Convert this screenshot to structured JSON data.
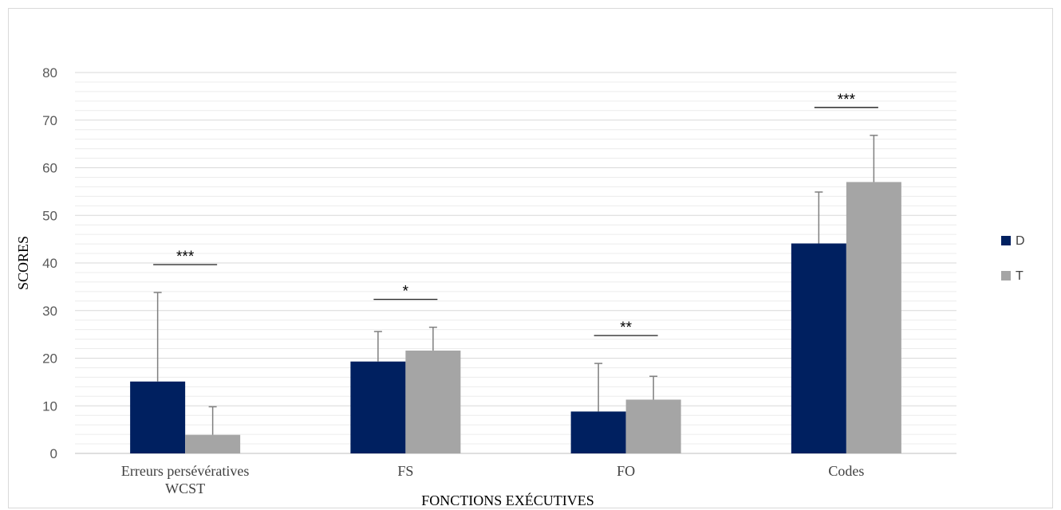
{
  "chart_data": {
    "type": "bar",
    "categories": [
      [
        "Erreurs persévératives",
        "WCST"
      ],
      [
        "FS"
      ],
      [
        "FO"
      ],
      [
        "Codes"
      ]
    ],
    "series": [
      {
        "name": "D",
        "color": "#002060",
        "values": [
          15.1,
          19.3,
          8.8,
          44.1
        ],
        "error": [
          18.7,
          6.3,
          10.1,
          10.8
        ]
      },
      {
        "name": "T",
        "color": "#a5a5a5",
        "values": [
          3.9,
          21.6,
          11.3,
          57.0
        ],
        "error": [
          5.9,
          4.9,
          4.9,
          9.8
        ]
      }
    ],
    "significance": [
      "***",
      "*",
      "**",
      "***"
    ],
    "xlabel": "FONCTIONS EXÉCUTIVES",
    "ylabel": "SCORES",
    "ylim": [
      0,
      80
    ],
    "yticks": [
      "0",
      "10",
      "20",
      "30",
      "40",
      "50",
      "60",
      "70",
      "80"
    ],
    "grid": true,
    "minor_grid": true,
    "legend_position": "right"
  }
}
